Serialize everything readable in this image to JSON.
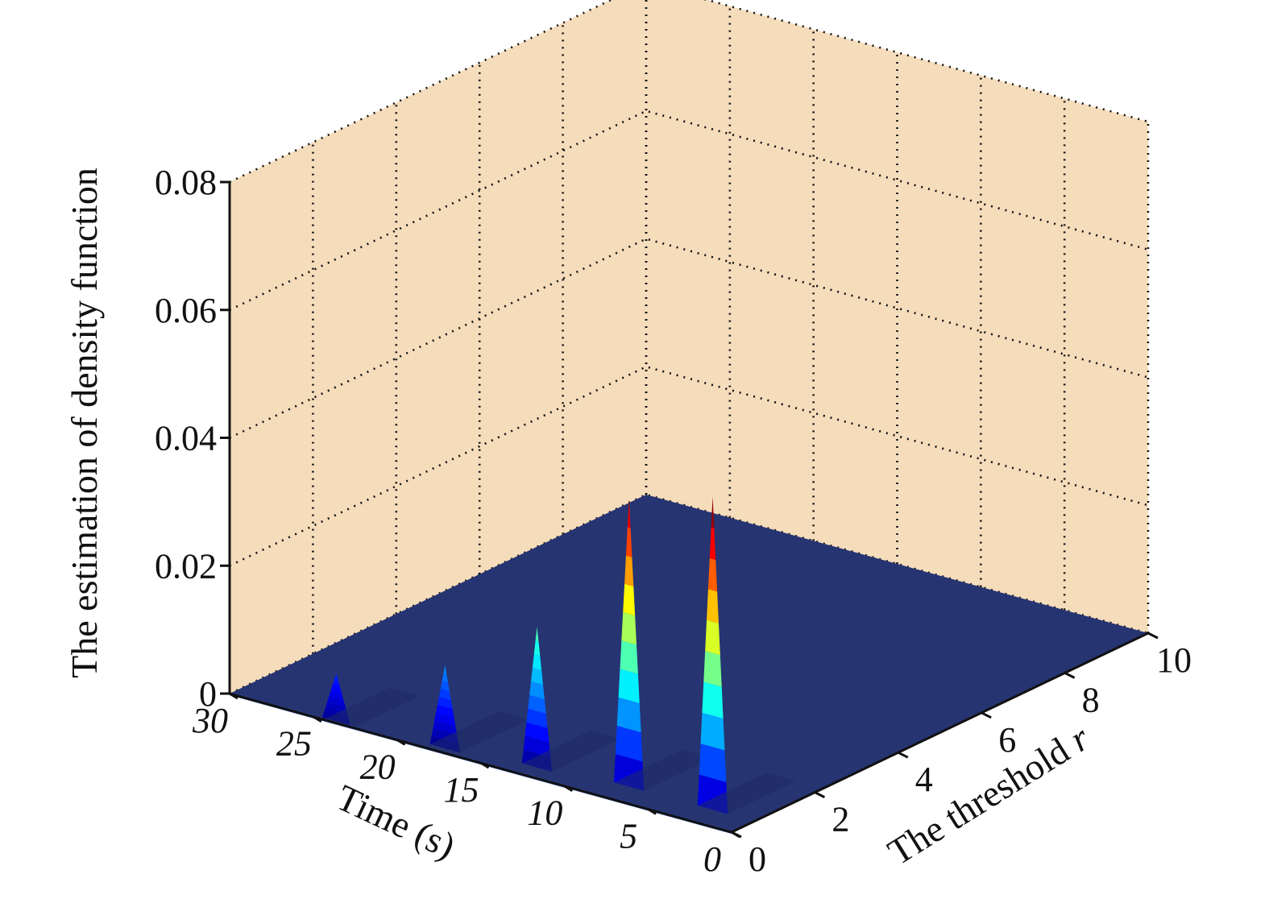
{
  "chart_data": {
    "type": "surface3d",
    "title": "",
    "xlabel": "Time (s)",
    "ylabel_prefix": "The threshold ",
    "ylabel_var": "r",
    "zlabel": "The estimation of  density function",
    "xlim": [
      0,
      30
    ],
    "ylim": [
      0,
      10
    ],
    "zlim": [
      0,
      0.08
    ],
    "x_ticks": [
      "0",
      "5",
      "10",
      "15",
      "20",
      "25",
      "30"
    ],
    "y_ticks": [
      "0",
      "2",
      "4",
      "6",
      "8",
      "10"
    ],
    "z_ticks": [
      "0",
      "0.02",
      "0.04",
      "0.06",
      "0.08"
    ],
    "grid": true,
    "colormap": "jet",
    "floor_value": 0.0,
    "peaks": [
      {
        "time": 2.5,
        "threshold": 1.0,
        "density": 0.049
      },
      {
        "time": 7.5,
        "threshold": 1.0,
        "density": 0.045
      },
      {
        "time": 12.5,
        "threshold": 0.8,
        "density": 0.022
      },
      {
        "time": 17.5,
        "threshold": 0.6,
        "density": 0.013
      },
      {
        "time": 23.5,
        "threshold": 0.4,
        "density": 0.008
      }
    ],
    "colors": {
      "pane": "#f5dcbb",
      "surface_floor": "#263472",
      "grid": "#111111"
    }
  }
}
